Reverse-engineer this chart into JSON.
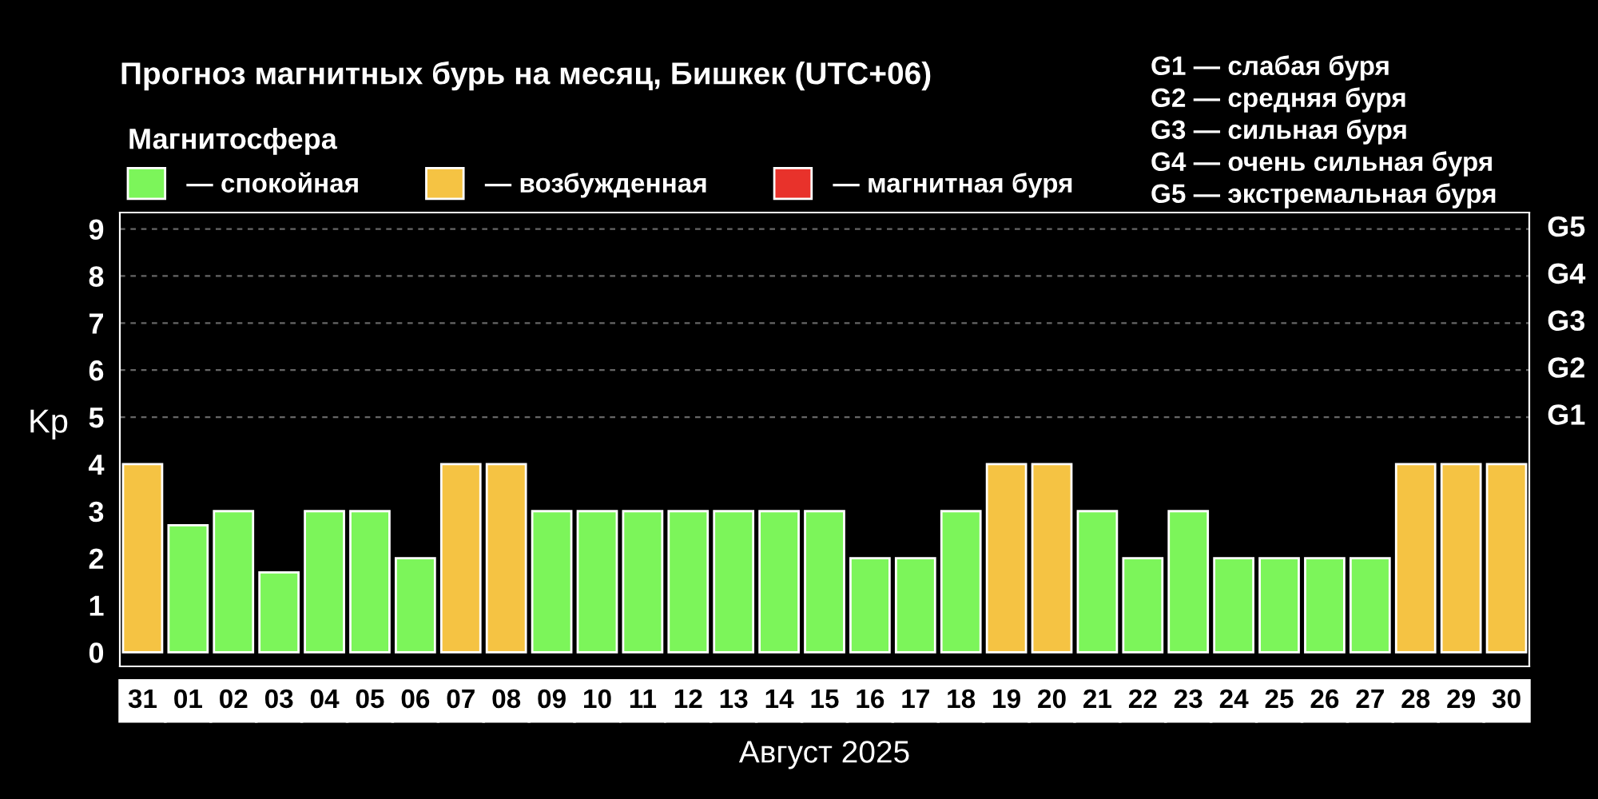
{
  "chart_data": {
    "type": "bar",
    "title": "Прогноз магнитных бурь на месяц, Бишкек (UTC+06)",
    "xlabel": "Август 2025",
    "ylabel": "Kp",
    "legend_title": "Магнитосфера",
    "legend": "top left",
    "categories": [
      "31",
      "01",
      "02",
      "03",
      "04",
      "05",
      "06",
      "07",
      "08",
      "09",
      "10",
      "11",
      "12",
      "13",
      "14",
      "15",
      "16",
      "17",
      "18",
      "19",
      "20",
      "21",
      "22",
      "23",
      "24",
      "25",
      "26",
      "27",
      "28",
      "29",
      "30"
    ],
    "series": [
      {
        "name": "— спокойная",
        "color": "#7cf55a",
        "values": [
          null,
          2.7,
          3,
          1.7,
          3,
          3,
          2,
          null,
          null,
          3,
          3,
          3,
          3,
          3,
          3,
          3,
          2,
          2,
          3,
          null,
          null,
          3,
          2,
          3,
          2,
          2,
          2,
          2,
          null,
          null,
          null
        ]
      },
      {
        "name": "— возбужденная",
        "color": "#f5c343",
        "values": [
          4,
          null,
          null,
          null,
          null,
          null,
          null,
          4,
          4,
          null,
          null,
          null,
          null,
          null,
          null,
          null,
          null,
          null,
          null,
          4,
          4,
          null,
          null,
          null,
          null,
          null,
          null,
          null,
          4,
          4,
          4
        ]
      },
      {
        "name": "— магнитная буря",
        "color": "#e8322b",
        "values": [
          null,
          null,
          null,
          null,
          null,
          null,
          null,
          null,
          null,
          null,
          null,
          null,
          null,
          null,
          null,
          null,
          null,
          null,
          null,
          null,
          null,
          null,
          null,
          null,
          null,
          null,
          null,
          null,
          null,
          null,
          null
        ]
      }
    ],
    "ylim": [
      -0.3,
      9.35
    ],
    "yticks": [
      0,
      1,
      2,
      3,
      4,
      5,
      6,
      7,
      8,
      9
    ],
    "ref_lines": [
      {
        "axis": "y",
        "value": 5,
        "label": "G1",
        "color": "#666666",
        "line_style": "dashed"
      },
      {
        "axis": "y",
        "value": 6,
        "label": "G2",
        "color": "#666666",
        "line_style": "dashed"
      },
      {
        "axis": "y",
        "value": 7,
        "label": "G3",
        "color": "#666666",
        "line_style": "dashed"
      },
      {
        "axis": "y",
        "value": 8,
        "label": "G4",
        "color": "#666666",
        "line_style": "dashed"
      },
      {
        "axis": "y",
        "value": 9,
        "label": "G5",
        "color": "#666666",
        "line_style": "dashed"
      }
    ],
    "annotations": [
      "G1 — слабая буря",
      "G2 — средняя буря",
      "G3 — сильная буря",
      "G4 — очень сильная буря",
      "G5 — экстремальная буря"
    ]
  }
}
